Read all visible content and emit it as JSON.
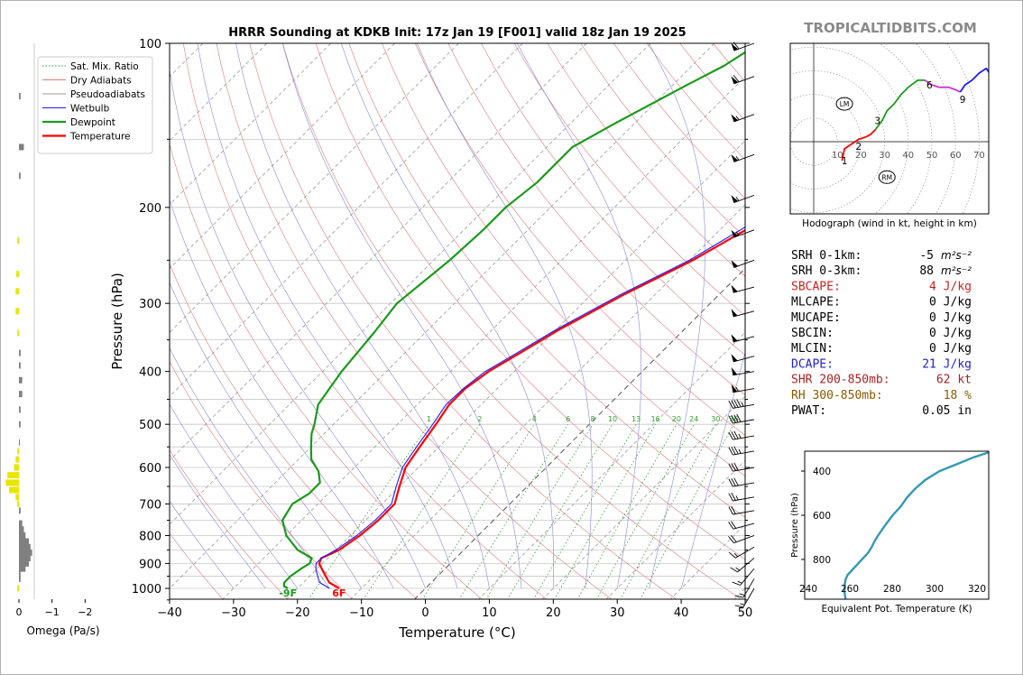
{
  "chart_data": [
    {
      "type": "line",
      "kind": "skew-t",
      "title": "HRRR Sounding at KDKB Init: 17z Jan 19 [F001] valid 18z Jan 19 2025",
      "xlabel": "Temperature (°C)",
      "ylabel": "Pressure (hPa)",
      "xlim": [
        -40,
        50
      ],
      "ylim": [
        1050,
        100
      ],
      "y_scale": "log",
      "x_ticks": [
        "−40",
        "−30",
        "−20",
        "−10",
        "0",
        "10",
        "20",
        "30",
        "40",
        "50"
      ],
      "y_ticks": [
        "100",
        "200",
        "300",
        "400",
        "500",
        "600",
        "700",
        "800",
        "900",
        "1000"
      ],
      "legend": {
        "placement": "top-left",
        "entries": [
          {
            "label": "Sat. Mix. Ratio",
            "color": "#2e9e2e",
            "style": "dotted"
          },
          {
            "label": "Dry Adiabats",
            "color": "#e07a7a",
            "style": "solid"
          },
          {
            "label": "Pseudoadiabats",
            "color": "#9a9a9a",
            "style": "solid"
          },
          {
            "label": "Wetbulb",
            "color": "#1a1aff",
            "style": "solid"
          },
          {
            "label": "Dewpoint",
            "color": "#1a9a1a",
            "style": "solid"
          },
          {
            "label": "Temperature",
            "color": "#ff0000",
            "style": "solid"
          }
        ]
      },
      "series": [
        {
          "name": "Temperature",
          "color": "#ff0000",
          "points": [
            [
              -13.5,
              1000
            ],
            [
              -16,
              975
            ],
            [
              -19,
              925
            ],
            [
              -20.5,
              900
            ],
            [
              -21,
              880
            ],
            [
              -19.5,
              850
            ],
            [
              -18.5,
              800
            ],
            [
              -18,
              750
            ],
            [
              -18,
              700
            ],
            [
              -20,
              650
            ],
            [
              -22,
              600
            ],
            [
              -23,
              550
            ],
            [
              -24,
              500
            ],
            [
              -25,
              460
            ],
            [
              -25,
              430
            ],
            [
              -24,
              400
            ],
            [
              -22,
              370
            ],
            [
              -19.5,
              335
            ],
            [
              -15,
              290
            ],
            [
              -9.5,
              250
            ],
            [
              -4,
              205
            ],
            [
              1,
              170
            ],
            [
              5.5,
              145
            ],
            [
              9.5,
              125
            ],
            [
              13,
              108
            ],
            [
              15.5,
              100
            ]
          ]
        },
        {
          "name": "Wetbulb",
          "color": "#1a1aff",
          "points": [
            [
              -15,
              1000
            ],
            [
              -17.5,
              975
            ],
            [
              -20,
              925
            ],
            [
              -21,
              900
            ],
            [
              -21,
              880
            ],
            [
              -20,
              850
            ],
            [
              -19,
              800
            ],
            [
              -18.5,
              750
            ],
            [
              -18.5,
              700
            ],
            [
              -20.5,
              650
            ],
            [
              -22.5,
              600
            ],
            [
              -23.5,
              550
            ],
            [
              -24.5,
              500
            ],
            [
              -25.5,
              460
            ],
            [
              -25.3,
              430
            ],
            [
              -24.5,
              400
            ],
            [
              -22.5,
              370
            ],
            [
              -20,
              335
            ],
            [
              -15.5,
              290
            ],
            [
              -10,
              250
            ],
            [
              -5,
              205
            ],
            [
              0,
              170
            ],
            [
              4.5,
              145
            ],
            [
              8.5,
              125
            ],
            [
              12,
              108
            ],
            [
              14.5,
              100
            ]
          ]
        },
        {
          "name": "Dewpoint",
          "color": "#1a9a1a",
          "points": [
            [
              -21.5,
              1000
            ],
            [
              -22.5,
              990
            ],
            [
              -23,
              975
            ],
            [
              -23,
              950
            ],
            [
              -22.5,
              920
            ],
            [
              -22,
              900
            ],
            [
              -22.5,
              880
            ],
            [
              -26,
              850
            ],
            [
              -30,
              800
            ],
            [
              -33,
              750
            ],
            [
              -34,
              700
            ],
            [
              -33,
              670
            ],
            [
              -33,
              640
            ],
            [
              -35,
              610
            ],
            [
              -38,
              580
            ],
            [
              -40,
              550
            ],
            [
              -42,
              520
            ],
            [
              -43,
              500
            ],
            [
              -45.5,
              460
            ],
            [
              -47,
              400
            ],
            [
              -48,
              340
            ],
            [
              -49,
              300
            ],
            [
              -47.5,
              250
            ],
            [
              -47,
              220
            ],
            [
              -47,
              200
            ],
            [
              -46,
              180
            ],
            [
              -46,
              155
            ],
            [
              -43,
              140
            ],
            [
              -38,
              120
            ],
            [
              -35,
              110
            ],
            [
              -33,
              100
            ]
          ]
        }
      ],
      "labels": [
        {
          "text": "6F",
          "series": "Temperature",
          "color": "#ff0000"
        },
        {
          "text": "-9F",
          "series": "Dewpoint",
          "color": "#1a9a1a"
        }
      ],
      "mixing_ratio_labels": [
        "1",
        "2",
        "4",
        "6",
        "8",
        "10",
        "13",
        "16",
        "20",
        "24",
        "30",
        "36"
      ]
    },
    {
      "type": "bar",
      "orientation": "horizontal",
      "xlabel": "Omega (Pa/s)",
      "x_ticks": [
        "0",
        "−1",
        "−2"
      ],
      "xlim": [
        0.3,
        -2.7
      ],
      "positive_color": "#e6e600",
      "negative_color": "#808080",
      "bars": [
        {
          "p": 1000,
          "v": 0.05
        },
        {
          "p": 960,
          "v": -0.05
        },
        {
          "p": 935,
          "v": -0.05
        },
        {
          "p": 920,
          "v": -0.2
        },
        {
          "p": 900,
          "v": -0.3
        },
        {
          "p": 880,
          "v": -0.35
        },
        {
          "p": 860,
          "v": -0.4
        },
        {
          "p": 840,
          "v": -0.35
        },
        {
          "p": 820,
          "v": -0.3
        },
        {
          "p": 800,
          "v": -0.2
        },
        {
          "p": 780,
          "v": -0.15
        },
        {
          "p": 760,
          "v": -0.1
        },
        {
          "p": 720,
          "v": -0.05
        },
        {
          "p": 700,
          "v": 0.05
        },
        {
          "p": 680,
          "v": 0.1
        },
        {
          "p": 660,
          "v": 0.3
        },
        {
          "p": 640,
          "v": 0.4
        },
        {
          "p": 620,
          "v": 0.35
        },
        {
          "p": 600,
          "v": 0.15
        },
        {
          "p": 580,
          "v": 0.1
        },
        {
          "p": 560,
          "v": 0.05
        },
        {
          "p": 540,
          "v": -0.02
        },
        {
          "p": 500,
          "v": -0.05
        },
        {
          "p": 470,
          "v": -0.05
        },
        {
          "p": 440,
          "v": -0.1
        },
        {
          "p": 415,
          "v": -0.1
        },
        {
          "p": 390,
          "v": -0.05
        },
        {
          "p": 370,
          "v": -0.05
        },
        {
          "p": 340,
          "v": 0.05
        },
        {
          "p": 310,
          "v": 0.1
        },
        {
          "p": 285,
          "v": 0.1
        },
        {
          "p": 265,
          "v": 0.08
        },
        {
          "p": 230,
          "v": 0.05
        },
        {
          "p": 175,
          "v": -0.05
        },
        {
          "p": 155,
          "v": -0.15
        },
        {
          "p": 125,
          "v": -0.05
        }
      ]
    },
    {
      "type": "line",
      "kind": "hodograph",
      "caption": "Hodograph (wind in kt, height in km)",
      "rings": [
        "10",
        "20",
        "30",
        "40",
        "50",
        "60",
        "70"
      ],
      "segments": [
        {
          "color": "#ff0000",
          "points": [
            [
              12,
              -8
            ],
            [
              13,
              -3
            ],
            [
              16,
              -1
            ],
            [
              19,
              1
            ],
            [
              22,
              2
            ],
            [
              24,
              3
            ],
            [
              26,
              5
            ]
          ]
        },
        {
          "color": "#1a9a1a",
          "points": [
            [
              26,
              5
            ],
            [
              29,
              9
            ],
            [
              31,
              13
            ],
            [
              34,
              16
            ],
            [
              37,
              20
            ],
            [
              40,
              23
            ],
            [
              44,
              26
            ],
            [
              47,
              26
            ]
          ]
        },
        {
          "color": "#cc33cc",
          "points": [
            [
              47,
              26
            ],
            [
              50,
              24
            ],
            [
              53,
              23
            ],
            [
              57,
              23
            ],
            [
              60,
              22
            ],
            [
              62,
              21
            ]
          ]
        },
        {
          "color": "#1a1aff",
          "points": [
            [
              62,
              21
            ],
            [
              64,
              24
            ],
            [
              67,
              26
            ],
            [
              70,
              29
            ],
            [
              73,
              31
            ],
            [
              75,
              28
            ]
          ]
        }
      ],
      "height_labels": [
        {
          "text": "1",
          "u": 13,
          "v": -8
        },
        {
          "text": "2",
          "u": 19,
          "v": -2
        },
        {
          "text": "3",
          "u": 27,
          "v": 9
        },
        {
          "text": "6",
          "u": 49,
          "v": 24
        },
        {
          "text": "9",
          "u": 63,
          "v": 18
        }
      ],
      "markers": [
        {
          "text": "LM",
          "u": 13,
          "v": 16
        },
        {
          "text": "RM",
          "u": 31,
          "v": -15
        }
      ]
    },
    {
      "type": "line",
      "kind": "theta-e",
      "xlabel": "Equivalent Pot. Temperature (K)",
      "ylabel": "Pressure (hPa)",
      "x_ticks": [
        "240",
        "260",
        "280",
        "300",
        "320"
      ],
      "y_ticks": [
        "400",
        "600",
        "800"
      ],
      "xlim": [
        240,
        330
      ],
      "ylim": [
        980,
        310
      ],
      "series": [
        {
          "name": "theta-e",
          "color": "#3399b3",
          "points": [
            [
              260,
              980
            ],
            [
              259.5,
              950
            ],
            [
              259.5,
              920
            ],
            [
              260,
              890
            ],
            [
              261,
              870
            ],
            [
              264,
              840
            ],
            [
              268,
              800
            ],
            [
              271,
              770
            ],
            [
              273,
              740
            ],
            [
              274,
              720
            ],
            [
              276,
              690
            ],
            [
              279,
              650
            ],
            [
              283,
              600
            ],
            [
              287,
              560
            ],
            [
              290,
              520
            ],
            [
              294,
              480
            ],
            [
              299,
              440
            ],
            [
              306,
              400
            ],
            [
              314,
              370
            ],
            [
              322,
              340
            ],
            [
              330,
              315
            ]
          ]
        }
      ]
    }
  ],
  "brand": "TROPICALTIDBITS.COM",
  "stats": [
    {
      "label": "SRH 0-1km:",
      "value": "-5",
      "unit": "m²s⁻²",
      "color": "#000000"
    },
    {
      "label": "SRH 0-3km:",
      "value": "88",
      "unit": "m²s⁻²",
      "color": "#000000"
    },
    {
      "label": "SBCAPE:",
      "value": "4 J/kg",
      "color": "#cc2222"
    },
    {
      "label": "MLCAPE:",
      "value": "0 J/kg",
      "color": "#000000"
    },
    {
      "label": "MUCAPE:",
      "value": "0 J/kg",
      "color": "#000000"
    },
    {
      "label": "SBCIN:",
      "value": "0 J/kg",
      "color": "#000000"
    },
    {
      "label": "MLCIN:",
      "value": "0 J/kg",
      "color": "#000000"
    },
    {
      "label": "DCAPE:",
      "value": "21 J/kg",
      "color": "#2222cc"
    },
    {
      "label": "SHR 200-850mb:",
      "value": "62 kt",
      "color": "#aa2222"
    },
    {
      "label": "RH 300-850mb:",
      "value": "18 %",
      "color": "#8a5a00"
    },
    {
      "label": "PWAT:",
      "value": "0.05 in",
      "color": "#000000"
    }
  ],
  "wind_barbs": [
    {
      "p": 100,
      "spd": 60,
      "dir": 250
    },
    {
      "p": 115,
      "spd": 60,
      "dir": 250
    },
    {
      "p": 135,
      "spd": 55,
      "dir": 250
    },
    {
      "p": 160,
      "spd": 55,
      "dir": 250
    },
    {
      "p": 190,
      "spd": 55,
      "dir": 250
    },
    {
      "p": 220,
      "spd": 55,
      "dir": 250
    },
    {
      "p": 250,
      "spd": 50,
      "dir": 250
    },
    {
      "p": 280,
      "spd": 50,
      "dir": 255
    },
    {
      "p": 310,
      "spd": 50,
      "dir": 255
    },
    {
      "p": 345,
      "spd": 50,
      "dir": 255
    },
    {
      "p": 375,
      "spd": 50,
      "dir": 255
    },
    {
      "p": 400,
      "spd": 50,
      "dir": 260
    },
    {
      "p": 430,
      "spd": 55,
      "dir": 260
    },
    {
      "p": 460,
      "spd": 45,
      "dir": 260
    },
    {
      "p": 490,
      "spd": 40,
      "dir": 260
    },
    {
      "p": 525,
      "spd": 35,
      "dir": 260
    },
    {
      "p": 560,
      "spd": 35,
      "dir": 260
    },
    {
      "p": 600,
      "spd": 30,
      "dir": 260
    },
    {
      "p": 640,
      "spd": 30,
      "dir": 260
    },
    {
      "p": 680,
      "spd": 25,
      "dir": 260
    },
    {
      "p": 720,
      "spd": 20,
      "dir": 260
    },
    {
      "p": 760,
      "spd": 20,
      "dir": 255
    },
    {
      "p": 800,
      "spd": 20,
      "dir": 250
    },
    {
      "p": 840,
      "spd": 15,
      "dir": 240
    },
    {
      "p": 880,
      "spd": 15,
      "dir": 230
    },
    {
      "p": 920,
      "spd": 15,
      "dir": 220
    },
    {
      "p": 960,
      "spd": 15,
      "dir": 210
    },
    {
      "p": 1000,
      "spd": 15,
      "dir": 210
    }
  ]
}
